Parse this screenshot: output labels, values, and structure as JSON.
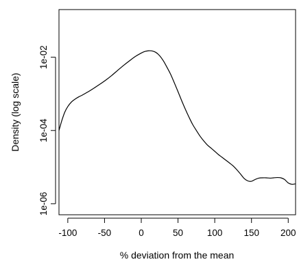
{
  "chart_data": {
    "type": "line",
    "title": "",
    "xlabel": "% deviation from the mean",
    "ylabel": "Density (log scale)",
    "xlim": [
      -112,
      210
    ],
    "ylim": [
      5e-07,
      0.2
    ],
    "log_y": true,
    "grid": false,
    "x_ticks": [
      -100,
      -50,
      0,
      50,
      100,
      150,
      200
    ],
    "x_tick_labels": [
      "-100",
      "-50",
      "0",
      "50",
      "100",
      "150",
      "200"
    ],
    "y_ticks": [
      1e-06,
      0.0001,
      0.01
    ],
    "y_tick_labels": [
      "1e-06",
      "1e-04",
      "1e-02"
    ],
    "series": [
      {
        "color": "#000000",
        "points": [
          [
            -112,
            0.0001
          ],
          [
            -108,
            0.00019
          ],
          [
            -104,
            0.00032
          ],
          [
            -100,
            0.00045
          ],
          [
            -95,
            0.0006
          ],
          [
            -90,
            0.00072
          ],
          [
            -85,
            0.00083
          ],
          [
            -80,
            0.00093
          ],
          [
            -72,
            0.00115
          ],
          [
            -64,
            0.00145
          ],
          [
            -56,
            0.00185
          ],
          [
            -48,
            0.0024
          ],
          [
            -40,
            0.0032
          ],
          [
            -32,
            0.0044
          ],
          [
            -24,
            0.006
          ],
          [
            -16,
            0.008
          ],
          [
            -8,
            0.0105
          ],
          [
            0,
            0.013
          ],
          [
            5,
            0.0144
          ],
          [
            10,
            0.015
          ],
          [
            15,
            0.0148
          ],
          [
            20,
            0.0135
          ],
          [
            25,
            0.011
          ],
          [
            30,
            0.008
          ],
          [
            35,
            0.0053
          ],
          [
            40,
            0.0034
          ],
          [
            45,
            0.002
          ],
          [
            50,
            0.00115
          ],
          [
            55,
            0.00065
          ],
          [
            60,
            0.00038
          ],
          [
            65,
            0.00023
          ],
          [
            70,
            0.000145
          ],
          [
            75,
            0.0001
          ],
          [
            80,
            7e-05
          ],
          [
            85,
            5.2e-05
          ],
          [
            90,
            4e-05
          ],
          [
            95,
            3.3e-05
          ],
          [
            100,
            2.7e-05
          ],
          [
            105,
            2.2e-05
          ],
          [
            110,
            1.85e-05
          ],
          [
            115,
            1.55e-05
          ],
          [
            120,
            1.3e-05
          ],
          [
            125,
            1.08e-05
          ],
          [
            130,
            8.5e-06
          ],
          [
            135,
            6.5e-06
          ],
          [
            140,
            4.9e-06
          ],
          [
            145,
            4.2e-06
          ],
          [
            150,
            4.1e-06
          ],
          [
            155,
            4.6e-06
          ],
          [
            160,
            5e-06
          ],
          [
            165,
            5.1e-06
          ],
          [
            170,
            5.1e-06
          ],
          [
            175,
            5e-06
          ],
          [
            180,
            5.1e-06
          ],
          [
            185,
            5.2e-06
          ],
          [
            190,
            5.1e-06
          ],
          [
            195,
            4.6e-06
          ],
          [
            200,
            3.7e-06
          ],
          [
            205,
            3.4e-06
          ],
          [
            210,
            3.5e-06
          ]
        ]
      }
    ]
  }
}
